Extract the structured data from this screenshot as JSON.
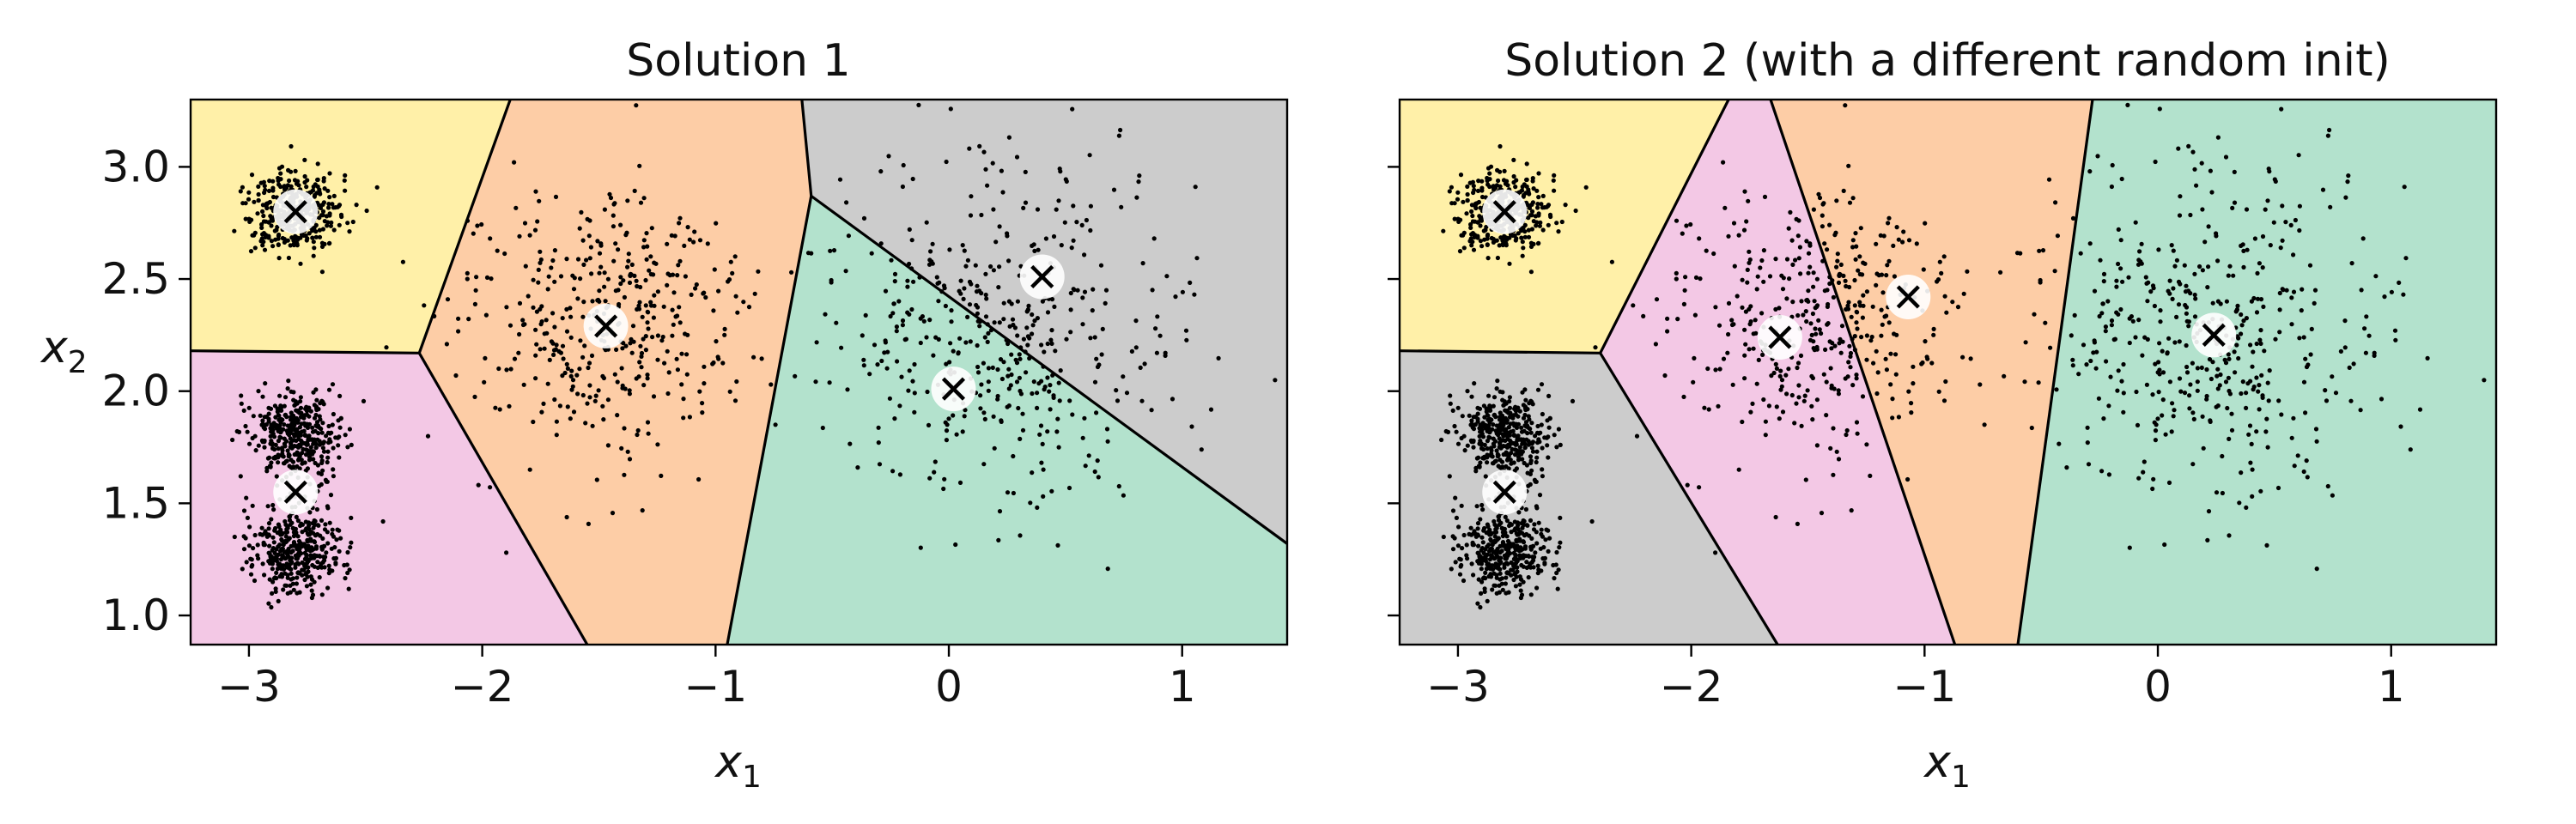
{
  "chart_data": [
    {
      "type": "scatter",
      "title": "Solution 1",
      "xlabel": "x",
      "xlabel_sub": "1",
      "ylabel": "x",
      "ylabel_sub": "2",
      "xlim": [
        -3.25,
        1.45
      ],
      "ylim": [
        0.87,
        3.3
      ],
      "xticks": [
        -3,
        -2,
        -1,
        0,
        1
      ],
      "xtick_labels": [
        "−3",
        "−2",
        "−1",
        "0",
        "1"
      ],
      "yticks": [
        1.0,
        1.5,
        2.0,
        2.5,
        3.0
      ],
      "ytick_labels": [
        "1.0",
        "1.5",
        "2.0",
        "2.5",
        "3.0"
      ],
      "ytick_labels_visible": true,
      "grid": false,
      "legend": "none",
      "centroids": [
        {
          "x": -2.8,
          "y": 2.8
        },
        {
          "x": -1.47,
          "y": 2.29
        },
        {
          "x": -2.8,
          "y": 1.55
        },
        {
          "x": 0.02,
          "y": 2.01
        },
        {
          "x": 0.4,
          "y": 2.51
        }
      ],
      "regions": [
        {
          "color": "#fff0a8",
          "polygon": [
            [
              -3.25,
              3.3
            ],
            [
              -1.88,
              3.3
            ],
            [
              -2.27,
              2.17
            ],
            [
              -3.25,
              2.18
            ]
          ]
        },
        {
          "color": "#fdcda6",
          "polygon": [
            [
              -1.88,
              3.3
            ],
            [
              -0.63,
              3.3
            ],
            [
              -0.59,
              2.87
            ],
            [
              -0.95,
              0.87
            ],
            [
              -1.55,
              0.87
            ],
            [
              -2.27,
              2.17
            ]
          ]
        },
        {
          "color": "#f3c8e5",
          "polygon": [
            [
              -3.25,
              2.18
            ],
            [
              -2.27,
              2.17
            ],
            [
              -1.55,
              0.87
            ],
            [
              -3.25,
              0.87
            ]
          ]
        },
        {
          "color": "#cccccc",
          "polygon": [
            [
              -0.63,
              3.3
            ],
            [
              1.45,
              3.3
            ],
            [
              1.45,
              1.32
            ],
            [
              -0.59,
              2.87
            ]
          ]
        },
        {
          "color": "#b3e2cd",
          "polygon": [
            [
              -0.59,
              2.87
            ],
            [
              1.45,
              1.32
            ],
            [
              1.45,
              0.87
            ],
            [
              -0.95,
              0.87
            ]
          ]
        }
      ],
      "boundaries": [
        [
          [
            -1.88,
            3.3
          ],
          [
            -2.27,
            2.17
          ],
          [
            -3.25,
            2.18
          ]
        ],
        [
          [
            -2.27,
            2.17
          ],
          [
            -1.55,
            0.87
          ]
        ],
        [
          [
            -0.63,
            3.3
          ],
          [
            -0.59,
            2.87
          ],
          [
            -0.95,
            0.87
          ]
        ],
        [
          [
            -0.59,
            2.87
          ],
          [
            1.45,
            1.32
          ]
        ]
      ]
    },
    {
      "type": "scatter",
      "title": "Solution 2 (with a different random init)",
      "xlabel": "x",
      "xlabel_sub": "1",
      "xlim": [
        -3.25,
        1.45
      ],
      "ylim": [
        0.87,
        3.3
      ],
      "xticks": [
        -3,
        -2,
        -1,
        0,
        1
      ],
      "xtick_labels": [
        "−3",
        "−2",
        "−1",
        "0",
        "1"
      ],
      "yticks": [
        1.0,
        1.5,
        2.0,
        2.5,
        3.0
      ],
      "ytick_labels_visible": false,
      "grid": false,
      "legend": "none",
      "centroids": [
        {
          "x": -2.8,
          "y": 2.8
        },
        {
          "x": -1.62,
          "y": 2.24
        },
        {
          "x": -1.07,
          "y": 2.42
        },
        {
          "x": -2.8,
          "y": 1.55
        },
        {
          "x": 0.24,
          "y": 2.25
        }
      ],
      "regions": [
        {
          "color": "#fff0a8",
          "polygon": [
            [
              -3.25,
              3.3
            ],
            [
              -1.84,
              3.3
            ],
            [
              -2.39,
              2.17
            ],
            [
              -3.25,
              2.18
            ]
          ]
        },
        {
          "color": "#f3c8e5",
          "polygon": [
            [
              -1.84,
              3.3
            ],
            [
              -1.66,
              3.3
            ],
            [
              -0.87,
              0.87
            ],
            [
              -1.63,
              0.87
            ],
            [
              -2.39,
              2.17
            ]
          ]
        },
        {
          "color": "#fdcda6",
          "polygon": [
            [
              -1.66,
              3.3
            ],
            [
              -0.28,
              3.3
            ],
            [
              -0.6,
              0.87
            ],
            [
              -0.87,
              0.87
            ]
          ]
        },
        {
          "color": "#b3e2cd",
          "polygon": [
            [
              -0.28,
              3.3
            ],
            [
              1.45,
              3.3
            ],
            [
              1.45,
              0.87
            ],
            [
              -0.6,
              0.87
            ]
          ]
        },
        {
          "color": "#cccccc",
          "polygon": [
            [
              -3.25,
              2.18
            ],
            [
              -2.39,
              2.17
            ],
            [
              -1.63,
              0.87
            ],
            [
              -3.25,
              0.87
            ]
          ]
        }
      ],
      "boundaries": [
        [
          [
            -1.84,
            3.3
          ],
          [
            -2.39,
            2.17
          ],
          [
            -3.25,
            2.18
          ]
        ],
        [
          [
            -2.39,
            2.17
          ],
          [
            -1.63,
            0.87
          ]
        ],
        [
          [
            -1.66,
            3.3
          ],
          [
            -0.87,
            0.87
          ]
        ],
        [
          [
            -0.28,
            3.3
          ],
          [
            -0.6,
            0.87
          ]
        ]
      ]
    }
  ],
  "blobs": [
    {
      "cx": -2.8,
      "cy": 2.8,
      "sd": 0.1,
      "n": 380
    },
    {
      "cx": -2.8,
      "cy": 1.8,
      "sd": 0.1,
      "n": 380
    },
    {
      "cx": -2.8,
      "cy": 1.3,
      "sd": 0.1,
      "n": 380
    },
    {
      "cx": -1.47,
      "cy": 2.3,
      "sd": 0.3,
      "n": 420
    },
    {
      "cx": 0.2,
      "cy": 2.26,
      "sd": 0.38,
      "n": 460
    }
  ]
}
